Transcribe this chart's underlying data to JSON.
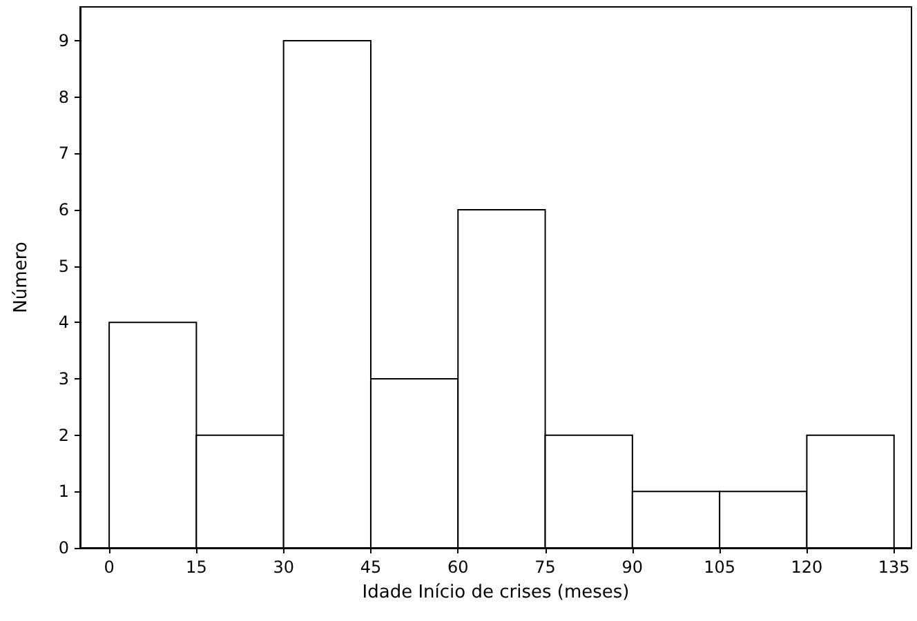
{
  "chart_data": {
    "type": "histogram",
    "xlabel": "Idade Início de crises (meses)",
    "ylabel": "Número",
    "bins": [
      0,
      15,
      30,
      45,
      60,
      75,
      90,
      105,
      120,
      135
    ],
    "values": [
      4,
      2,
      9,
      3,
      6,
      2,
      1,
      1,
      2
    ],
    "color": "#ffffff",
    "xlim": [
      -5,
      138
    ],
    "xticks": [
      0,
      15,
      30,
      45,
      60,
      75,
      90,
      105,
      120,
      135
    ],
    "ylim": [
      0,
      9.6
    ],
    "yticks": [
      0,
      1,
      2,
      3,
      4,
      5,
      6,
      7,
      8,
      9
    ],
    "grid": false
  }
}
